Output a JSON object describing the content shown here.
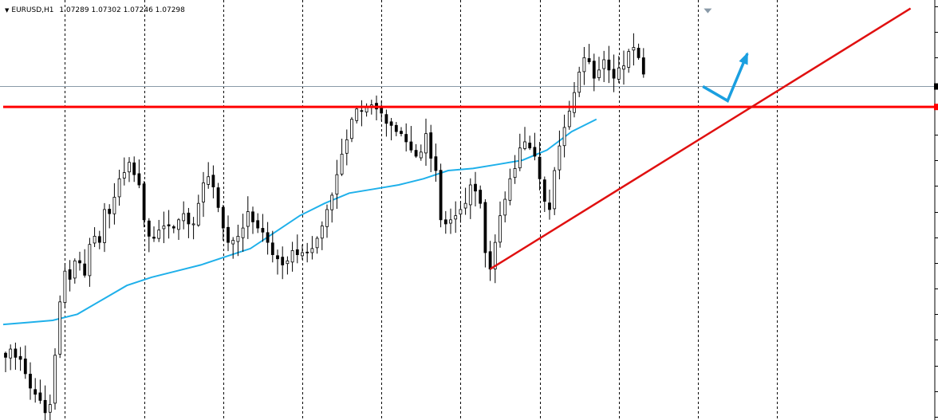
{
  "header": {
    "symbol": "EURUSD,H1",
    "open": "1.07289",
    "high": "1.07302",
    "low": "1.07246",
    "close": "1.07298"
  },
  "colors": {
    "background": "#ffffff",
    "candle": "#000000",
    "moving_average": "#1fb0ea",
    "support_line": "#ff0000",
    "trendline": "#e01010",
    "arrow": "#1a9fe0",
    "grid": "#000000",
    "bid_line": "#8a9aa8"
  },
  "chart_data": {
    "type": "candlestick",
    "symbol": "EURUSD",
    "timeframe": "H1",
    "last_bar": {
      "open": 1.07289,
      "high": 1.07302,
      "low": 1.07246,
      "close": 1.07298
    },
    "grid": "vertical dashed",
    "closes": [
      0.145,
      0.165,
      0.145,
      0.14,
      0.105,
      0.07,
      0.055,
      0.04,
      0.01,
      0.03,
      0.15,
      0.28,
      0.355,
      0.335,
      0.38,
      0.375,
      0.345,
      0.42,
      0.44,
      0.425,
      0.505,
      0.495,
      0.535,
      0.58,
      0.595,
      0.62,
      0.59,
      0.565,
      0.48,
      0.44,
      0.435,
      0.455,
      0.465,
      0.465,
      0.46,
      0.48,
      0.495,
      0.47,
      0.47,
      0.52,
      0.57,
      0.585,
      0.56,
      0.51,
      0.46,
      0.425,
      0.43,
      0.44,
      0.46,
      0.5,
      0.475,
      0.46,
      0.45,
      0.425,
      0.395,
      0.385,
      0.37,
      0.38,
      0.405,
      0.395,
      0.4,
      0.4,
      0.41,
      0.435,
      0.465,
      0.505,
      0.54,
      0.59,
      0.64,
      0.675,
      0.725,
      0.75,
      0.745,
      0.755,
      0.76,
      0.75,
      0.74,
      0.715,
      0.71,
      0.695,
      0.69,
      0.67,
      0.65,
      0.635,
      0.645,
      0.69,
      0.63,
      0.6,
      0.48,
      0.47,
      0.48,
      0.49,
      0.505,
      0.52,
      0.565,
      0.55,
      0.52,
      0.4,
      0.36,
      0.425,
      0.49,
      0.53,
      0.58,
      0.605,
      0.655,
      0.67,
      0.655,
      0.635,
      0.58,
      0.525,
      0.505,
      0.6,
      0.66,
      0.705,
      0.745,
      0.79,
      0.84,
      0.875,
      0.865,
      0.825,
      0.845,
      0.87,
      0.845,
      0.825,
      0.85,
      0.855,
      0.89,
      0.9,
      0.875,
      0.835
    ],
    "moving_average": [
      0.225,
      0.23,
      0.235,
      0.25,
      0.285,
      0.32,
      0.34,
      0.355,
      0.37,
      0.39,
      0.41,
      0.45,
      0.49,
      0.52,
      0.545,
      0.555,
      0.565,
      0.58,
      0.6,
      0.605,
      0.615,
      0.625,
      0.65,
      0.695,
      0.725
    ],
    "horizontal_levels": [
      {
        "name": "support-resistance",
        "value": 0.755
      },
      {
        "name": "bid",
        "value": 0.805
      }
    ],
    "trendline": {
      "from": [
        98,
        0.36
      ],
      "to": [
        183,
        0.995
      ]
    },
    "forecast_arrow": [
      [
        141,
        0.805
      ],
      [
        146,
        0.77
      ],
      [
        150,
        0.885
      ]
    ],
    "marker": {
      "x": 142,
      "value": 0.995
    }
  }
}
